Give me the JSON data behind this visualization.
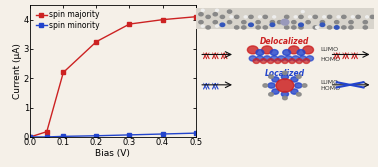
{
  "bias": [
    0.0,
    0.05,
    0.1,
    0.2,
    0.3,
    0.4,
    0.5
  ],
  "spin_majority": [
    0.0,
    0.18,
    2.2,
    3.25,
    3.85,
    4.0,
    4.1
  ],
  "spin_minority": [
    0.0,
    0.0,
    0.02,
    0.04,
    0.07,
    0.1,
    0.13
  ],
  "xlabel": "Bias (V)",
  "ylabel": "Current (μA)",
  "legend_majority": "spin majority",
  "legend_minority": "spin minority",
  "color_majority": "#cc2222",
  "color_minority": "#2244cc",
  "xlim": [
    0.0,
    0.5
  ],
  "ylim": [
    0.0,
    4.5
  ],
  "yticks": [
    0,
    1,
    2,
    3,
    4
  ],
  "xticks": [
    0.0,
    0.1,
    0.2,
    0.3,
    0.4,
    0.5
  ],
  "bg_color": "#f5f0e8",
  "fig_width": 3.78,
  "fig_height": 1.67,
  "delocalized_color": "#cc2222",
  "localized_color": "#2244cc",
  "mol_bg": "#e8e4dc",
  "arrow_color": "#111111"
}
